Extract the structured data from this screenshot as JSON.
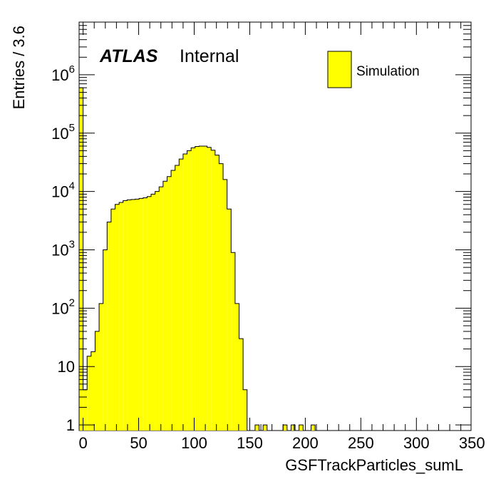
{
  "chart_data": {
    "type": "histogram",
    "title": "",
    "xlabel": "GSFTrackParticles_sumL",
    "ylabel": "Entries / 3.6",
    "xlim": [
      -3.6,
      349.2
    ],
    "ylim": [
      0.8,
      8000000
    ],
    "yscale": "log",
    "bin_width": 3.6,
    "x_start": -3.6,
    "fill_color": "#ffff00",
    "line_color": "#000000",
    "x_ticks": [
      "0",
      "50",
      "100",
      "150",
      "200",
      "250",
      "300",
      "350"
    ],
    "y_ticks": [
      {
        "base": "1",
        "exp": ""
      },
      {
        "base": "10",
        "exp": ""
      },
      {
        "base": "10",
        "exp": "2"
      },
      {
        "base": "10",
        "exp": "3"
      },
      {
        "base": "10",
        "exp": "4"
      },
      {
        "base": "10",
        "exp": "5"
      },
      {
        "base": "10",
        "exp": "6"
      }
    ],
    "series": [
      {
        "name": "Simulation",
        "values": [
          600000,
          4,
          15,
          18,
          40,
          120,
          1000,
          3000,
          5000,
          6000,
          6500,
          7000,
          7200,
          7300,
          7400,
          7600,
          7800,
          8200,
          9000,
          10000,
          12000,
          15000,
          18000,
          23000,
          28000,
          36000,
          44000,
          50000,
          56000,
          59000,
          60000,
          60000,
          57000,
          51000,
          42000,
          30000,
          16000,
          5000,
          900,
          120,
          30,
          4,
          0,
          0,
          1,
          0,
          1,
          0,
          0,
          0,
          0,
          1,
          0,
          1,
          0,
          1,
          0,
          0,
          1
        ]
      }
    ],
    "legend_position": "top-right",
    "label_title": "ATLAS",
    "label_subtitle": "Internal"
  }
}
